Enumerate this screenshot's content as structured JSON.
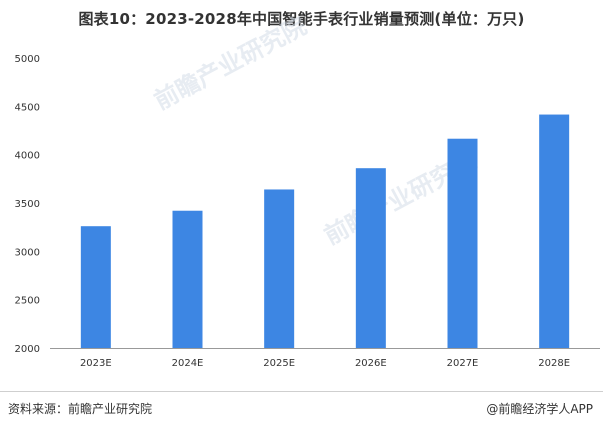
{
  "header": {
    "title": "图表10：2023-2028年中国智能手表行业销量预测(单位：万只)"
  },
  "footer": {
    "source": "资料来源：前瞻产业研究院",
    "brand": "@前瞻经济学人APP"
  },
  "watermark": {
    "text": "前瞻产业研究院"
  },
  "colors": {
    "bar": "#3d86e3",
    "axis": "#999999"
  },
  "chart_data": {
    "type": "bar",
    "title": "图表10：2023-2028年中国智能手表行业销量预测(单位：万只)",
    "categories": [
      "2023E",
      "2024E",
      "2025E",
      "2026E",
      "2027E",
      "2028E"
    ],
    "series": [
      {
        "values": [
          3260,
          3420,
          3640,
          3860,
          4165,
          4415
        ]
      }
    ],
    "ylim": [
      2000,
      5000
    ],
    "yticks": [
      2000,
      2500,
      3000,
      3500,
      4000,
      4500,
      5000
    ],
    "grid": false,
    "legend": "none"
  }
}
